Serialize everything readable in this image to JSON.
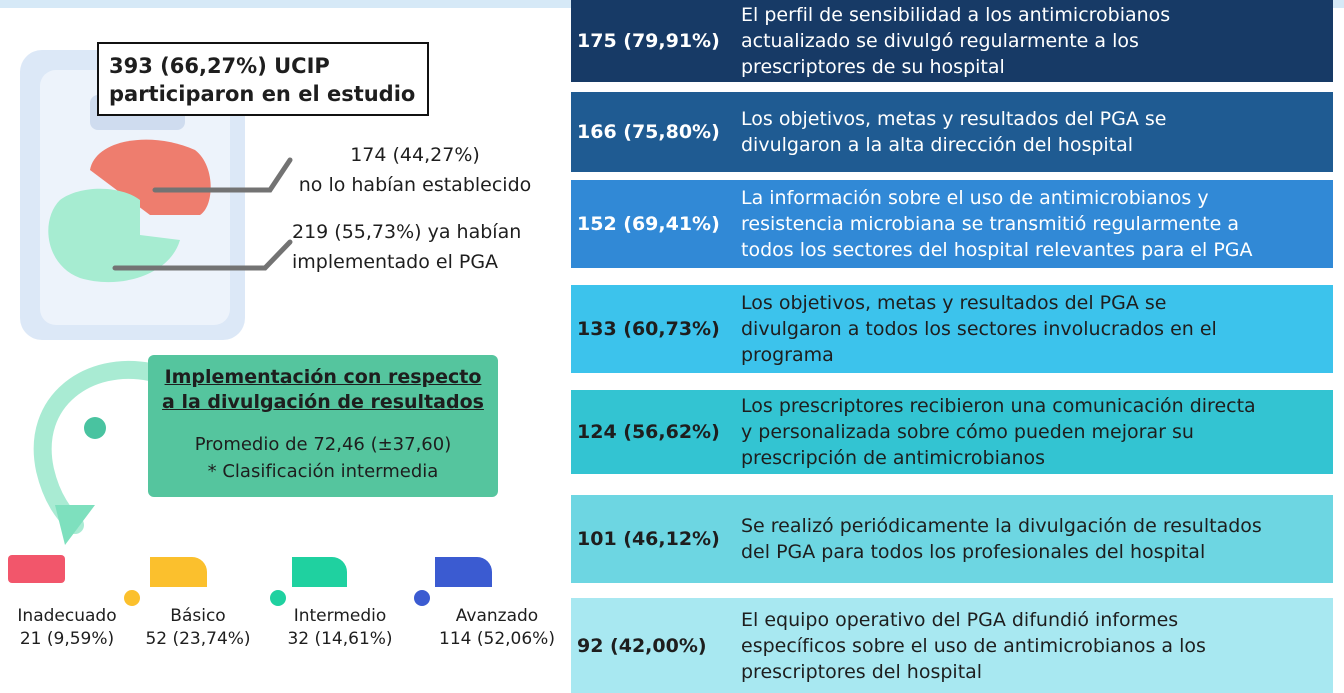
{
  "study": {
    "lines": [
      "393 (66,27%) UCIP",
      "participaron en el estudio"
    ]
  },
  "not_established": {
    "lines": [
      "174 (44,27%)",
      "no lo habían establecido"
    ]
  },
  "implemented": {
    "lines": [
      "219 (55,73%) ya habían",
      "implementado el PGA"
    ]
  },
  "summary": {
    "title_lines": [
      "Implementación  con respecto",
      "a la divulgación de resultados"
    ],
    "lines": [
      "Promedio de 72,46 (±37,60)",
      "* Clasificación intermedia"
    ]
  },
  "levels": [
    {
      "name": "Inadecuado",
      "value": "21 (9,59%)"
    },
    {
      "name": "Básico",
      "value": "52 (23,74%)"
    },
    {
      "name": "Intermedio",
      "value": "32 (14,61%)"
    },
    {
      "name": "Avanzado",
      "value": "114 (52,06%)"
    }
  ],
  "items": [
    {
      "count": "175 (79,91%)",
      "lines": [
        "El perfil de sensibilidad a los antimicrobianos",
        "actualizado se divulgó regularmente a los",
        "prescriptores de su hospital"
      ]
    },
    {
      "count": "166 (75,80%)",
      "lines": [
        "Los objetivos, metas y resultados del PGA se",
        "divulgaron a la alta dirección del hospital"
      ]
    },
    {
      "count": "152 (69,41%)",
      "lines": [
        "La información sobre el uso de antimicrobianos y",
        "resistencia microbiana se transmitió regularmente a",
        "todos los sectores del hospital relevantes para el PGA"
      ]
    },
    {
      "count": "133 (60,73%)",
      "lines": [
        "Los objetivos, metas y resultados del PGA se",
        "divulgaron a todos los sectores involucrados en el",
        "programa"
      ]
    },
    {
      "count": "124 (56,62%)",
      "lines": [
        "Los prescriptores recibieron una comunicación directa",
        "y personalizada sobre cómo pueden mejorar su",
        "prescripción de antimicrobianos"
      ]
    },
    {
      "count": "101 (46,12%)",
      "lines": [
        "Se realizó periódicamente la divulgación de resultados",
        "del PGA para todos los profesionales del hospital"
      ]
    },
    {
      "count": "92 (42,00%)",
      "lines": [
        "El equipo operativo del PGA difundió informes",
        "específicos sobre el uso de antimicrobianos a los",
        "prescriptores del hospital"
      ]
    }
  ]
}
